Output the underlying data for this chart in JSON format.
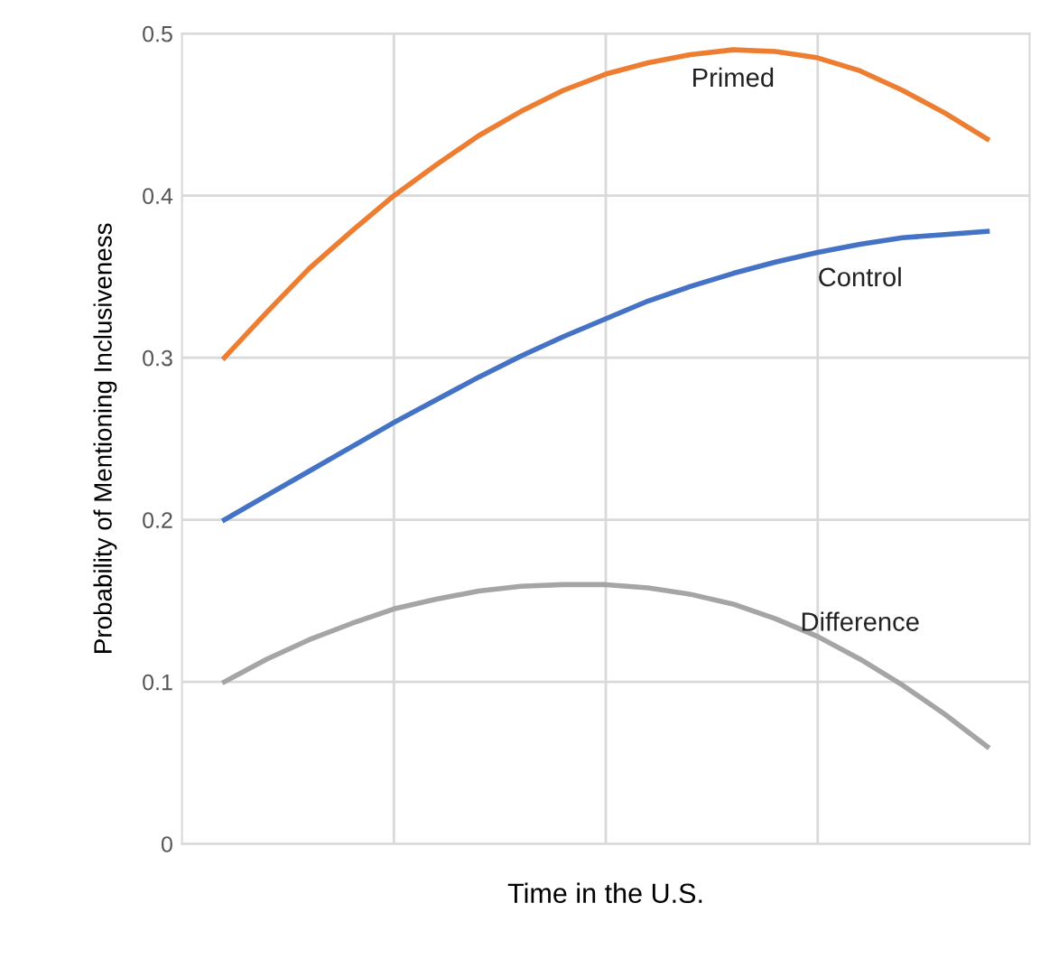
{
  "chart_data": {
    "type": "line",
    "xlabel": "Time in the U.S.",
    "ylabel": "Probability of Mentioning Inclusiveness",
    "categories": [
      null,
      null,
      null,
      null,
      null,
      null,
      null,
      null,
      null,
      null,
      null,
      null,
      null,
      null,
      null,
      null,
      null,
      null,
      null
    ],
    "series": [
      {
        "name": "Primed",
        "color": "#ed7d31",
        "values": [
          0.3,
          0.328,
          0.355,
          0.378,
          0.4,
          0.419,
          0.437,
          0.452,
          0.465,
          0.475,
          0.482,
          0.487,
          0.49,
          0.489,
          0.485,
          0.477,
          0.465,
          0.451,
          0.435
        ]
      },
      {
        "name": "Control",
        "color": "#4472c4",
        "values": [
          0.2,
          0.215,
          0.23,
          0.245,
          0.26,
          0.274,
          0.288,
          0.301,
          0.313,
          0.324,
          0.335,
          0.344,
          0.352,
          0.359,
          0.365,
          0.37,
          0.374,
          0.376,
          0.378
        ]
      },
      {
        "name": "Difference",
        "color": "#a5a5a5",
        "values": [
          0.1,
          0.114,
          0.126,
          0.136,
          0.145,
          0.151,
          0.156,
          0.159,
          0.16,
          0.16,
          0.158,
          0.154,
          0.148,
          0.139,
          0.128,
          0.114,
          0.098,
          0.08,
          0.06
        ]
      }
    ],
    "ylim": [
      0,
      0.5
    ],
    "yticks": [
      0,
      0.1,
      0.2,
      0.3,
      0.4,
      0.5
    ],
    "grid": true,
    "legend": false,
    "marker": "none",
    "line_style": "solid"
  }
}
